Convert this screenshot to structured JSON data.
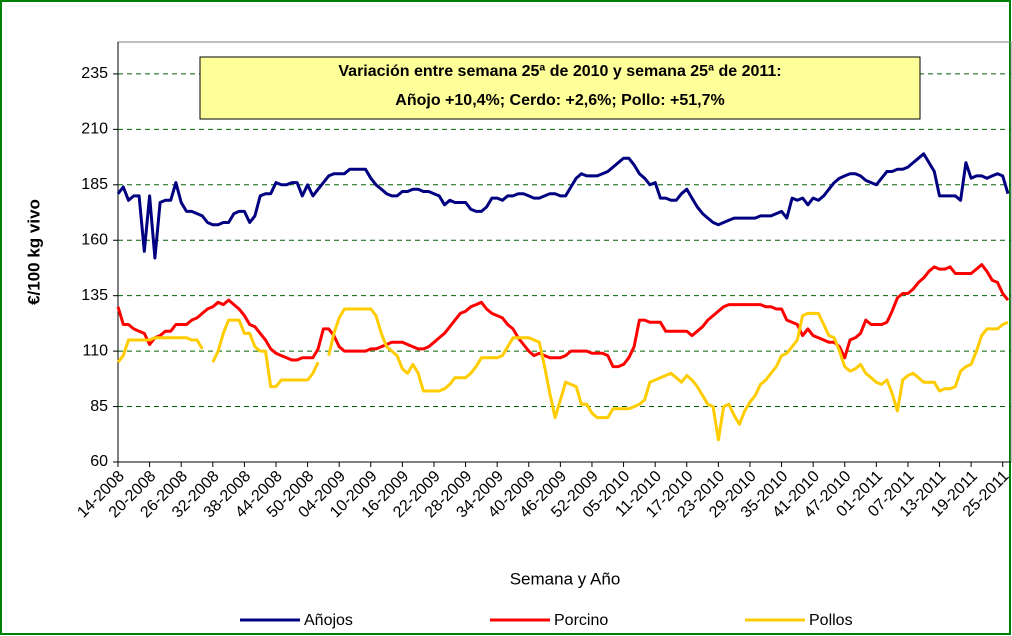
{
  "chart_data": {
    "type": "line",
    "annotation": [
      "Variación entre semana 25ª de 2010 y semana 25ª de 2011:",
      "Añojo +10,4%; Cerdo:  +2,6%; Pollo:  +51,7%"
    ],
    "xlabel": "Semana y Año",
    "ylabel": "€/100 kg vivo",
    "categories": [
      "14-2008",
      null,
      null,
      null,
      null,
      null,
      "20-2008",
      null,
      null,
      null,
      null,
      null,
      "26-2008",
      null,
      null,
      null,
      null,
      null,
      "32-2008",
      null,
      null,
      null,
      null,
      null,
      "38-2008",
      null,
      null,
      null,
      null,
      null,
      "44-2008",
      null,
      null,
      null,
      null,
      null,
      "50-2008",
      null,
      null,
      null,
      null,
      null,
      "04-2009",
      null,
      null,
      null,
      null,
      null,
      "10-2009",
      null,
      null,
      null,
      null,
      null,
      "16-2009",
      null,
      null,
      null,
      null,
      null,
      "22-2009",
      null,
      null,
      null,
      null,
      null,
      "28-2009",
      null,
      null,
      null,
      null,
      null,
      "34-2009",
      null,
      null,
      null,
      null,
      null,
      "40-2009",
      null,
      null,
      null,
      null,
      null,
      "46-2009",
      null,
      null,
      null,
      null,
      null,
      "52-2009",
      null,
      null,
      null,
      null,
      null,
      "05-2010",
      null,
      null,
      null,
      null,
      null,
      "11-2010",
      null,
      null,
      null,
      null,
      null,
      "17-2010",
      null,
      null,
      null,
      null,
      null,
      "23-2010",
      null,
      null,
      null,
      null,
      null,
      "29-2010",
      null,
      null,
      null,
      null,
      null,
      "35-2010",
      null,
      null,
      null,
      null,
      null,
      "41-2010",
      null,
      null,
      null,
      null,
      null,
      "47-2010",
      null,
      null,
      null,
      null,
      null,
      "01-2011",
      null,
      null,
      null,
      null,
      null,
      "07-2011",
      null,
      null,
      null,
      null,
      null,
      "13-2011",
      null,
      null,
      null,
      null,
      null,
      "19-2011",
      null,
      null,
      null,
      null,
      null,
      "25-2011",
      null
    ],
    "series": [
      {
        "name": "Añojos",
        "color": "#000080",
        "values": [
          181,
          184,
          178,
          180,
          180,
          155,
          180,
          152,
          177,
          178,
          178,
          186,
          177,
          173,
          173,
          172,
          171,
          168,
          167,
          167,
          168,
          168,
          172,
          173,
          173,
          168,
          171,
          180,
          181,
          181,
          186,
          185,
          185,
          186,
          186,
          180,
          185,
          180,
          183,
          186,
          189,
          190,
          190,
          190,
          192,
          192,
          192,
          192,
          188,
          185,
          183,
          181,
          180,
          180,
          182,
          182,
          183,
          183,
          182,
          182,
          181,
          180,
          176,
          178,
          177,
          177,
          177,
          174,
          173,
          173,
          175,
          179,
          179,
          178,
          180,
          180,
          181,
          181,
          180,
          179,
          179,
          180,
          181,
          181,
          180,
          180,
          184,
          188,
          190,
          189,
          189,
          189,
          190,
          191,
          193,
          195,
          197,
          197,
          194,
          190,
          188,
          185,
          186,
          179,
          179,
          178,
          178,
          181,
          183,
          179,
          175,
          172,
          170,
          168,
          167,
          168,
          169,
          170,
          170,
          170,
          170,
          170,
          171,
          171,
          171,
          172,
          173,
          170,
          179,
          178,
          179,
          176,
          179,
          178,
          180,
          183,
          186,
          188,
          189,
          190,
          190,
          189,
          187,
          186,
          185,
          188,
          191,
          191,
          192,
          192,
          193,
          195,
          197,
          199,
          195,
          191,
          180,
          180,
          180,
          180,
          178,
          195,
          188,
          189,
          189,
          188,
          189,
          190,
          189,
          181
        ]
      },
      {
        "name": "Porcino",
        "color": "#ff0000",
        "values": [
          130,
          122,
          122,
          120,
          119,
          118,
          113,
          116,
          117,
          119,
          119,
          122,
          122,
          122,
          124,
          125,
          127,
          129,
          130,
          132,
          131,
          133,
          131,
          129,
          126,
          122,
          121,
          118,
          115,
          111,
          109,
          108,
          107,
          106,
          106,
          107,
          107,
          107,
          111,
          120,
          120,
          117,
          112,
          110,
          110,
          110,
          110,
          110,
          111,
          111,
          112,
          113,
          114,
          114,
          114,
          113,
          112,
          111,
          111,
          112,
          114,
          116,
          118,
          121,
          124,
          127,
          128,
          130,
          131,
          132,
          129,
          127,
          126,
          125,
          122,
          120,
          116,
          113,
          110,
          108,
          109,
          108,
          107,
          107,
          107,
          108,
          110,
          110,
          110,
          110,
          109,
          109,
          109,
          108,
          103,
          103,
          104,
          107,
          112,
          124,
          124,
          123,
          123,
          123,
          119,
          119,
          119,
          119,
          119,
          117,
          119,
          121,
          124,
          126,
          128,
          130,
          131,
          131,
          131,
          131,
          131,
          131,
          131,
          130,
          130,
          129,
          129,
          124,
          123,
          122,
          117,
          120,
          117,
          116,
          115,
          114,
          114,
          112,
          107,
          115,
          116,
          118,
          124,
          122,
          122,
          122,
          123,
          128,
          134,
          136,
          136,
          138,
          141,
          143,
          146,
          148,
          147,
          147,
          148,
          145,
          145,
          145,
          145,
          147,
          149,
          146,
          142,
          141,
          136,
          133
        ]
      },
      {
        "name": "Pollos",
        "color": "#ffcc00",
        "values": [
          105,
          108,
          115,
          115,
          115,
          115,
          115,
          116,
          116,
          116,
          116,
          116,
          116,
          116,
          115,
          115,
          111,
          null,
          105,
          110,
          118,
          124,
          124,
          124,
          118,
          118,
          112,
          110,
          110,
          94,
          94,
          97,
          97,
          97,
          97,
          97,
          97,
          100,
          105,
          null,
          108,
          118,
          125,
          129,
          129,
          129,
          129,
          129,
          129,
          126,
          118,
          112,
          110,
          108,
          102,
          100,
          104,
          100,
          92,
          92,
          92,
          92,
          93,
          95,
          98,
          98,
          98,
          100,
          103,
          107,
          107,
          107,
          107,
          108,
          112,
          116,
          116,
          116,
          116,
          115,
          114,
          103,
          91,
          80,
          88,
          96,
          95,
          94,
          86,
          86,
          82,
          80,
          80,
          80,
          84,
          84,
          84,
          84,
          85,
          86,
          88,
          96,
          97,
          98,
          99,
          100,
          98,
          96,
          99,
          97,
          94,
          90,
          86,
          85,
          70,
          85,
          86,
          81,
          77,
          83,
          87,
          90,
          95,
          97,
          100,
          103,
          108,
          109,
          112,
          115,
          126,
          127,
          127,
          127,
          122,
          117,
          116,
          110,
          103,
          101,
          102,
          104,
          100,
          98,
          96,
          95,
          97,
          91,
          83,
          97,
          99,
          100,
          98,
          96,
          96,
          96,
          92,
          93,
          93,
          94,
          101,
          103,
          104,
          110,
          117,
          120,
          120,
          120,
          122,
          123
        ]
      }
    ],
    "ylim": [
      60,
      249.4
    ],
    "yticks": [
      60,
      85,
      110,
      135,
      160,
      185,
      210,
      235
    ],
    "grid": true,
    "legend": "bottom"
  }
}
